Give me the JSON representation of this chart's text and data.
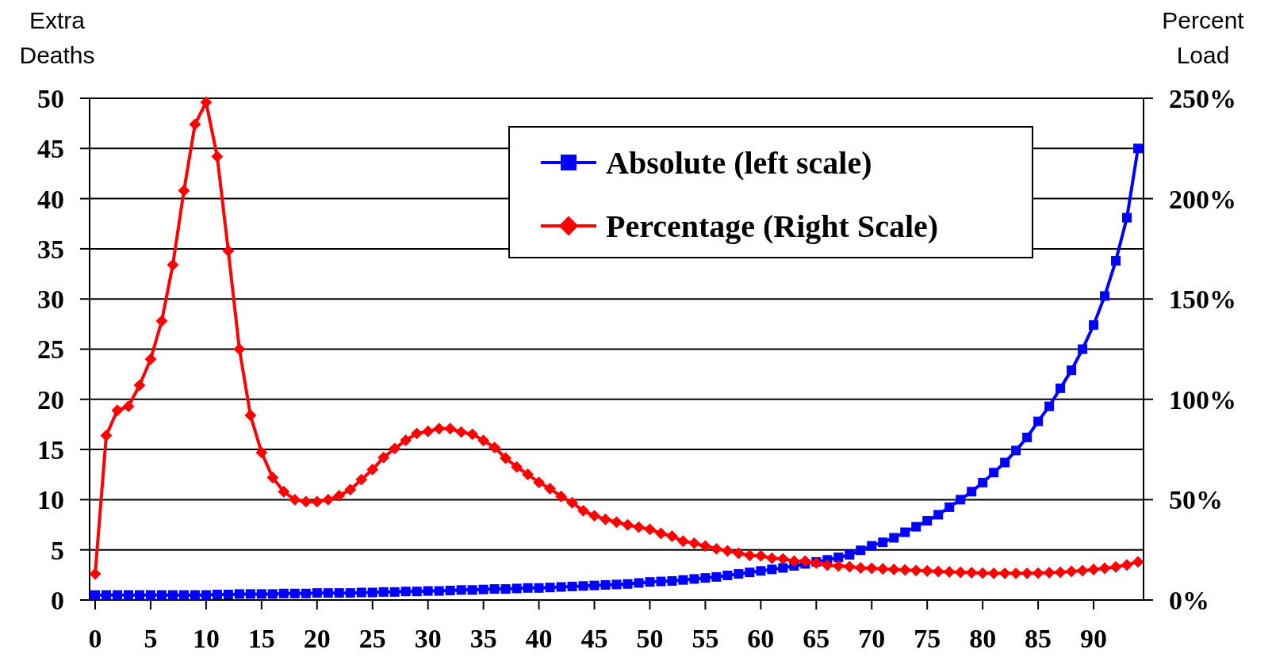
{
  "chart_data": {
    "type": "line",
    "ylabel": "Extra Deaths",
    "y2label": "Percent Load",
    "x": [
      0,
      1,
      2,
      3,
      4,
      5,
      6,
      7,
      8,
      9,
      10,
      11,
      12,
      13,
      14,
      15,
      16,
      17,
      18,
      19,
      20,
      21,
      22,
      23,
      24,
      25,
      26,
      27,
      28,
      29,
      30,
      31,
      32,
      33,
      34,
      35,
      36,
      37,
      38,
      39,
      40,
      41,
      42,
      43,
      44,
      45,
      46,
      47,
      48,
      49,
      50,
      51,
      52,
      53,
      54,
      55,
      56,
      57,
      58,
      59,
      60,
      61,
      62,
      63,
      64,
      65,
      66,
      67,
      68,
      69,
      70,
      71,
      72,
      73,
      74,
      75,
      76,
      77,
      78,
      79,
      80,
      81,
      82,
      83,
      84,
      85,
      86,
      87,
      88,
      89,
      90,
      91,
      92,
      93,
      94
    ],
    "xlim": [
      -0.5,
      94.5
    ],
    "xticks": [
      0,
      5,
      10,
      15,
      20,
      25,
      30,
      35,
      40,
      45,
      50,
      55,
      60,
      65,
      70,
      75,
      80,
      85,
      90
    ],
    "ylim": [
      0,
      50
    ],
    "yticks": [
      0,
      5,
      10,
      15,
      20,
      25,
      30,
      35,
      40,
      45,
      50
    ],
    "y2lim": [
      0,
      250
    ],
    "y2ticks": [
      {
        "value": 0,
        "label": "0%"
      },
      {
        "value": 50,
        "label": "50%"
      },
      {
        "value": 100,
        "label": "100%"
      },
      {
        "value": 150,
        "label": "150%"
      },
      {
        "value": 200,
        "label": "200%"
      },
      {
        "value": 250,
        "label": "250%"
      }
    ],
    "grid": "y",
    "legend": "top right",
    "line_style": "solid",
    "series": [
      {
        "name": "Absolute (left scale)",
        "color": "#0000ff",
        "marker": "square",
        "values": [
          0.5,
          0.5,
          0.5,
          0.5,
          0.5,
          0.5,
          0.5,
          0.5,
          0.5,
          0.5,
          0.5,
          0.55,
          0.55,
          0.6,
          0.6,
          0.6,
          0.6,
          0.65,
          0.65,
          0.65,
          0.7,
          0.7,
          0.7,
          0.7,
          0.75,
          0.75,
          0.8,
          0.8,
          0.85,
          0.85,
          0.9,
          0.9,
          0.95,
          1.0,
          1.0,
          1.05,
          1.1,
          1.1,
          1.15,
          1.2,
          1.2,
          1.25,
          1.3,
          1.35,
          1.4,
          1.45,
          1.5,
          1.55,
          1.6,
          1.7,
          1.8,
          1.85,
          1.9,
          2.0,
          2.1,
          2.2,
          2.3,
          2.45,
          2.6,
          2.75,
          2.9,
          3.05,
          3.2,
          3.4,
          3.6,
          3.8,
          4.0,
          4.25,
          4.5,
          4.95,
          5.4,
          5.75,
          6.2,
          6.75,
          7.3,
          7.9,
          8.5,
          9.25,
          10.0,
          10.8,
          11.7,
          12.7,
          13.7,
          14.9,
          16.2,
          17.8,
          19.3,
          21.1,
          22.9,
          25.0,
          27.4,
          30.3,
          33.8,
          38.1,
          45.0
        ]
      },
      {
        "name": "Percentage (Right Scale)",
        "color": "#ff0000",
        "marker": "diamond",
        "axis": "y2",
        "values": [
          13,
          82,
          94.5,
          96.5,
          107,
          120,
          139,
          167,
          204,
          237,
          248,
          221,
          174,
          125,
          92,
          73.5,
          61,
          54,
          50,
          49,
          49,
          50,
          52,
          55,
          60,
          65,
          71,
          75.5,
          79.6,
          83,
          84,
          85.4,
          85.4,
          83.7,
          82.6,
          79.5,
          76,
          70.7,
          66.3,
          62.6,
          58.6,
          55.5,
          51.6,
          48.5,
          44.5,
          42,
          40.2,
          38.8,
          37.4,
          36.3,
          35.2,
          33.2,
          31.8,
          29.3,
          28.3,
          26.9,
          25.5,
          24.5,
          23.3,
          22.2,
          22,
          20.8,
          20.5,
          19.4,
          19.4,
          18.4,
          17.4,
          17,
          16.6,
          16,
          15.8,
          15.5,
          15.2,
          15,
          14.7,
          14.5,
          14.2,
          14,
          13.8,
          13.6,
          13.4,
          13.3,
          13.3,
          13.3,
          13.3,
          13.4,
          13.6,
          13.8,
          14.2,
          14.6,
          15.2,
          15.8,
          16.5,
          17.5,
          19
        ]
      }
    ]
  }
}
